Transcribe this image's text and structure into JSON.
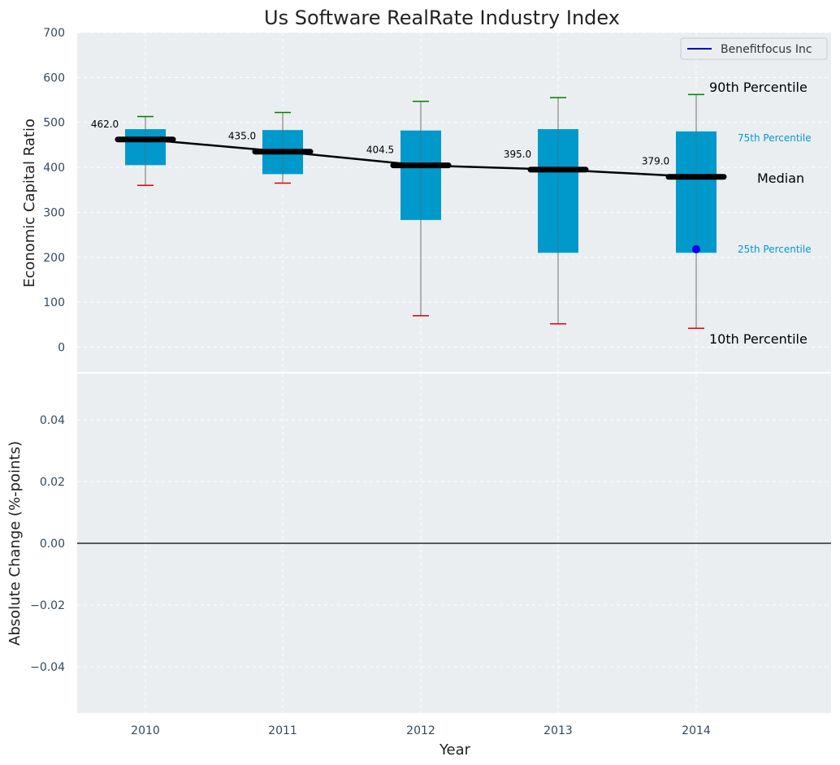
{
  "chart_data": [
    {
      "type": "box",
      "title": "Us Software RealRate Industry Index",
      "xlabel": "",
      "ylabel": "Economic Capital Ratio",
      "ylim": [
        -55,
        700
      ],
      "yticks": [
        0,
        100,
        200,
        300,
        400,
        500,
        600,
        700
      ],
      "categories": [
        "2010",
        "2011",
        "2012",
        "2013",
        "2014"
      ],
      "p10": [
        360,
        365,
        70,
        52,
        42
      ],
      "p25": [
        405,
        385,
        283,
        210,
        210
      ],
      "median": [
        462.0,
        435.0,
        404.5,
        395.0,
        379.0
      ],
      "median_labels": [
        "462.0",
        "435.0",
        "404.5",
        "395.0",
        "379.0"
      ],
      "p75": [
        485,
        483,
        482,
        485,
        480
      ],
      "p90": [
        513,
        522,
        547,
        555,
        562
      ],
      "company": {
        "name": "Benefitfocus Inc",
        "x": "2014",
        "value": 218
      },
      "annotations": {
        "p90": "90th Percentile",
        "p75": "75th Percentile",
        "median": "Median",
        "p25": "25th Percentile",
        "p10": "10th Percentile"
      },
      "legend": {
        "entry": "Benefitfocus Inc",
        "placement": "top-right"
      },
      "grid": true
    },
    {
      "type": "line",
      "xlabel": "Year",
      "ylabel": "Absolute Change (%-points)",
      "categories": [
        "2010",
        "2011",
        "2012",
        "2013",
        "2014"
      ],
      "ylim": [
        -0.055,
        0.055
      ],
      "yticks": [
        0.04,
        0.02,
        0.0,
        -0.02,
        -0.04
      ],
      "ytick_labels": [
        "0.04",
        "0.02",
        "0.00",
        "−0.02",
        "−0.04"
      ],
      "reference_line": 0,
      "grid": true
    }
  ],
  "colors": {
    "box": "#0099cc",
    "median_line": "#000000",
    "p90_cap": "#008000",
    "p10_cap": "#e00000",
    "company_marker": "#0000ee",
    "panel_bg": "#eaeef0",
    "tick_text": "#34495e",
    "annotation_small": "#0099cc"
  }
}
